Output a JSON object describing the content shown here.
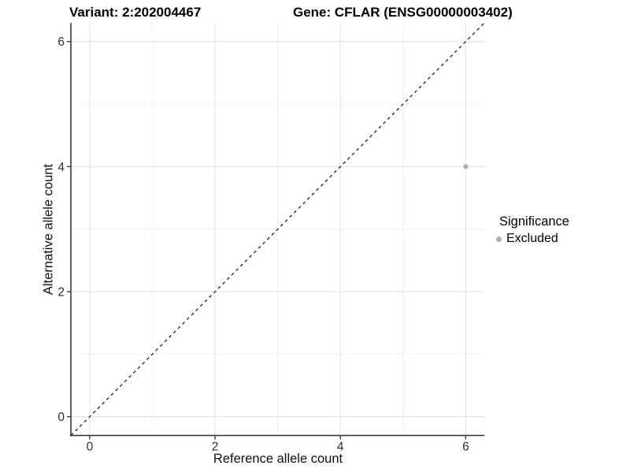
{
  "header": {
    "variant_title": "Variant: 2:202004467",
    "gene_title": "Gene: CFLAR (ENSG00000003402)"
  },
  "chart_data": {
    "type": "scatter",
    "title_left": "Variant: 2:202004467",
    "title_right": "Gene: CFLAR (ENSG00000003402)",
    "xlabel": "Reference allele count",
    "ylabel": "Alternative allele count",
    "xlim": [
      -0.3,
      6.3
    ],
    "ylim": [
      -0.3,
      6.3
    ],
    "x_major_ticks": [
      0,
      2,
      4,
      6
    ],
    "y_major_ticks": [
      0,
      2,
      4,
      6
    ],
    "x_minor_gridlines": [
      1,
      3,
      5
    ],
    "y_minor_gridlines": [
      1,
      3,
      5
    ],
    "grid": "major and minor gridlines on white panel",
    "identity_line": {
      "style": "dashed",
      "from": [
        -0.3,
        -0.3
      ],
      "to": [
        6.3,
        6.3
      ]
    },
    "series": [
      {
        "name": "Excluded",
        "color": "#aeaeae",
        "points": [
          {
            "x": 6,
            "y": 4
          }
        ]
      }
    ],
    "legend": {
      "title": "Significance",
      "position": "right",
      "items": [
        {
          "label": "Excluded",
          "color": "#aeaeae"
        }
      ]
    },
    "colors": {
      "point": "#aeaeae",
      "grid_major": "#e3e3e3",
      "grid_minor": "#f0f0f0",
      "axis_line": "#3c3c3c",
      "tick_label": "#2e2e2e",
      "identity_line": "#111111",
      "background": "#ffffff"
    }
  }
}
